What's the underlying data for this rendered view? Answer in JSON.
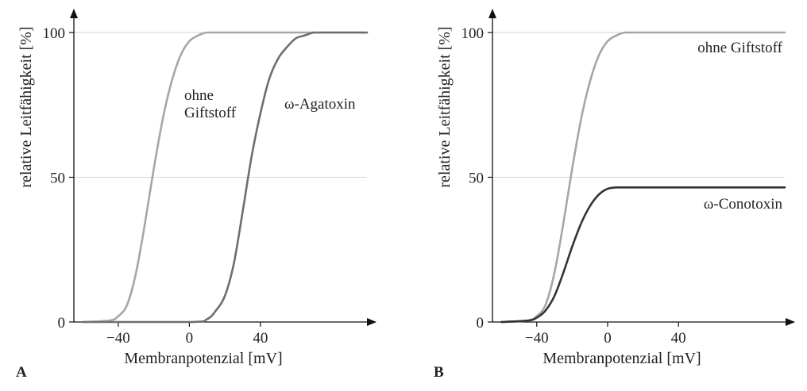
{
  "chart_data": [
    {
      "type": "line",
      "panel_label": "A",
      "xlabel": "Membranpotenzial [mV]",
      "ylabel": "relative Leitfähigkeit [%]",
      "xlim": [
        -65,
        100
      ],
      "ylim": [
        0,
        100
      ],
      "xticks": [
        "−40",
        "0",
        "40"
      ],
      "xtick_values": [
        -40,
        0,
        40
      ],
      "yticks": [
        "0",
        "50",
        "100"
      ],
      "ytick_values": [
        0,
        50,
        100
      ],
      "grid": "horizontal at 50 and 100",
      "series": [
        {
          "name": "ohne Giftstoff",
          "label_lines": [
            "ohne",
            "Giftstoff"
          ],
          "color": "#a6a6a6",
          "x": [
            -60,
            -45,
            -40,
            -35,
            -30,
            -25,
            -20,
            -15,
            -10,
            -5,
            0,
            5,
            10,
            20,
            40,
            100
          ],
          "y": [
            0,
            0.5,
            2,
            6,
            17,
            34,
            53,
            70,
            83,
            92,
            97,
            99,
            100,
            100,
            100,
            100
          ]
        },
        {
          "name": "ω-Agatoxin",
          "label_lines": [
            "ω-Agatoxin"
          ],
          "color": "#6e6e6e",
          "x": [
            -60,
            0,
            10,
            15,
            20,
            25,
            30,
            35,
            40,
            45,
            50,
            55,
            60,
            65,
            70,
            75,
            80,
            100
          ],
          "y": [
            0,
            0,
            1,
            4,
            9,
            20,
            38,
            57,
            72,
            84,
            91,
            95,
            98,
            99,
            100,
            100,
            100,
            100
          ]
        }
      ]
    },
    {
      "type": "line",
      "panel_label": "B",
      "xlabel": "Membranpotenzial [mV]",
      "ylabel": "relative Leitfähigkeit [%]",
      "xlim": [
        -65,
        100
      ],
      "ylim": [
        0,
        100
      ],
      "xticks": [
        "−40",
        "0",
        "40"
      ],
      "xtick_values": [
        -40,
        0,
        40
      ],
      "yticks": [
        "0",
        "50",
        "100"
      ],
      "ytick_values": [
        0,
        50,
        100
      ],
      "grid": "horizontal at 50 and 100",
      "series": [
        {
          "name": "ohne Giftstoff",
          "label_lines": [
            "ohne Giftstoff"
          ],
          "color": "#a6a6a6",
          "x": [
            -60,
            -45,
            -40,
            -35,
            -30,
            -25,
            -20,
            -15,
            -10,
            -5,
            0,
            5,
            10,
            20,
            40,
            100
          ],
          "y": [
            0,
            0.5,
            2,
            6,
            17,
            34,
            53,
            70,
            83,
            92,
            97,
            99,
            100,
            100,
            100,
            100
          ]
        },
        {
          "name": "ω-Conotoxin",
          "label_lines": [
            "ω-Conotoxin"
          ],
          "color": "#333333",
          "x": [
            -60,
            -45,
            -40,
            -35,
            -30,
            -25,
            -20,
            -15,
            -10,
            -5,
            0,
            5,
            10,
            20,
            40,
            100
          ],
          "y": [
            0,
            0.5,
            1.5,
            4,
            9,
            17,
            26,
            34,
            40,
            44,
            46,
            46.5,
            46.5,
            46.5,
            46.5,
            46.5
          ]
        }
      ]
    }
  ]
}
